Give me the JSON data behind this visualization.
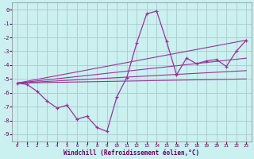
{
  "xlabel": "Windchill (Refroidissement éolien,°C)",
  "background_color": "#caf0f0",
  "grid_color": "#b0c8c8",
  "line_color": "#993399",
  "xlim": [
    -0.5,
    23.5
  ],
  "ylim": [
    -9.5,
    0.5
  ],
  "yticks": [
    0,
    -1,
    -2,
    -3,
    -4,
    -5,
    -6,
    -7,
    -8,
    -9
  ],
  "xticks": [
    0,
    1,
    2,
    3,
    4,
    5,
    6,
    7,
    8,
    9,
    10,
    11,
    12,
    13,
    14,
    15,
    16,
    17,
    18,
    19,
    20,
    21,
    22,
    23
  ],
  "curve1_x": [
    0,
    1,
    2,
    3,
    4,
    5,
    6,
    7,
    8,
    9,
    10,
    11,
    12,
    13,
    14,
    15,
    16,
    17,
    18,
    19,
    20,
    21,
    22,
    23
  ],
  "curve1_y": [
    -5.3,
    -5.4,
    -5.9,
    -6.6,
    -7.1,
    -6.9,
    -7.9,
    -7.7,
    -8.5,
    -8.8,
    -6.3,
    -4.9,
    -2.4,
    -0.3,
    -0.1,
    -2.3,
    -4.7,
    -3.5,
    -3.9,
    -3.7,
    -3.6,
    -4.1,
    -3.0,
    -2.2
  ],
  "line1_x": [
    0,
    23
  ],
  "line1_y": [
    -5.3,
    -2.2
  ],
  "line2_x": [
    0,
    23
  ],
  "line2_y": [
    -5.3,
    -3.5
  ],
  "line3_x": [
    0,
    23
  ],
  "line3_y": [
    -5.3,
    -4.4
  ],
  "line4_x": [
    0,
    23
  ],
  "line4_y": [
    -5.3,
    -5.0
  ]
}
